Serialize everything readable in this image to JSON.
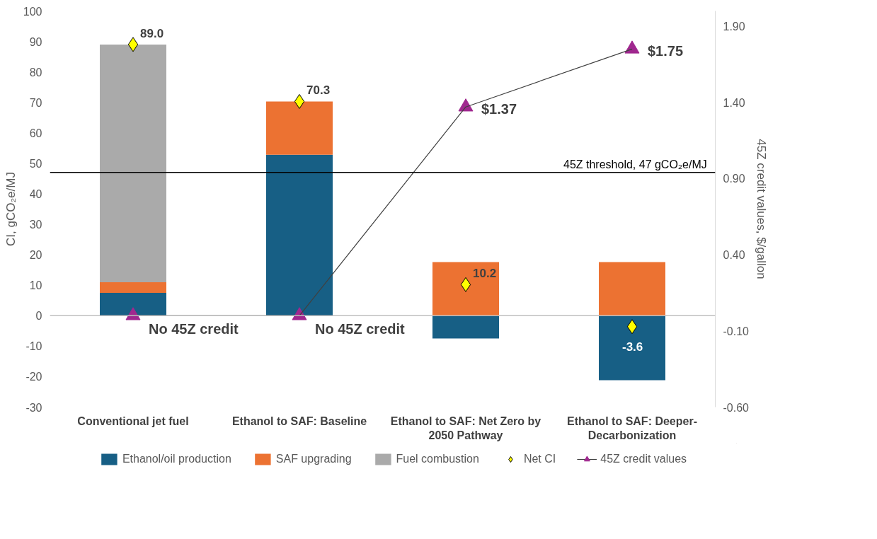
{
  "chart_data": {
    "type": "bar",
    "stacked": true,
    "categories": [
      "Conventional jet fuel",
      "Ethanol to SAF: Baseline",
      "Ethanol to SAF: Net Zero by 2050 Pathway",
      "Ethanol to SAF: Deeper-Decarbonization"
    ],
    "series": [
      {
        "name": "Ethanol/oil production",
        "color": "#175f85",
        "values": [
          7.5,
          52.8,
          -7.5,
          -21.2
        ]
      },
      {
        "name": "SAF upgrading",
        "color": "#ec7232",
        "values": [
          3.5,
          17.5,
          17.6,
          17.6
        ]
      },
      {
        "name": "Fuel combustion",
        "color": "#aaaaaa",
        "values": [
          78.0,
          0,
          0,
          0
        ]
      },
      {
        "name": "Net CI",
        "type": "scatter",
        "marker": "diamond",
        "color": "#ffff00",
        "values": [
          89.0,
          70.3,
          10.2,
          -3.6
        ],
        "value_labels": [
          "89.0",
          "70.3",
          "10.2",
          "-3.6"
        ]
      },
      {
        "name": "45Z credit values",
        "type": "line",
        "axis": "y2",
        "marker": "triangle",
        "color": "#a0288f",
        "values": [
          0,
          0,
          1.37,
          1.75
        ],
        "value_labels": [
          "No 45Z credit",
          "No 45Z credit",
          "$1.37",
          "$1.75"
        ]
      }
    ],
    "ylabel": "CI, gCO₂e/MJ",
    "y2label": "45Z credit values, $/gallon",
    "ylim": [
      -30,
      100
    ],
    "yticks": [
      -30,
      -20,
      -10,
      0,
      10,
      20,
      30,
      40,
      50,
      60,
      70,
      80,
      90,
      100
    ],
    "y2lim": [
      -0.6,
      2.0
    ],
    "y2ticks": [
      {
        "value": -0.6,
        "label": "-0.60"
      },
      {
        "value": -0.1,
        "label": "-0.10"
      },
      {
        "value": 0.4,
        "label": "0.40"
      },
      {
        "value": 0.9,
        "label": "0.90"
      },
      {
        "value": 1.4,
        "label": "1.40"
      },
      {
        "value": 1.9,
        "label": "1.90"
      }
    ],
    "ref_lines": [
      {
        "axis": "y",
        "value": 0,
        "color": "#bfbfbf"
      },
      {
        "axis": "y",
        "value": 47,
        "label": "45Z threshold, 47 gCO₂e/MJ",
        "color": "#000000"
      }
    ],
    "legend": "bottom",
    "grid": false
  }
}
